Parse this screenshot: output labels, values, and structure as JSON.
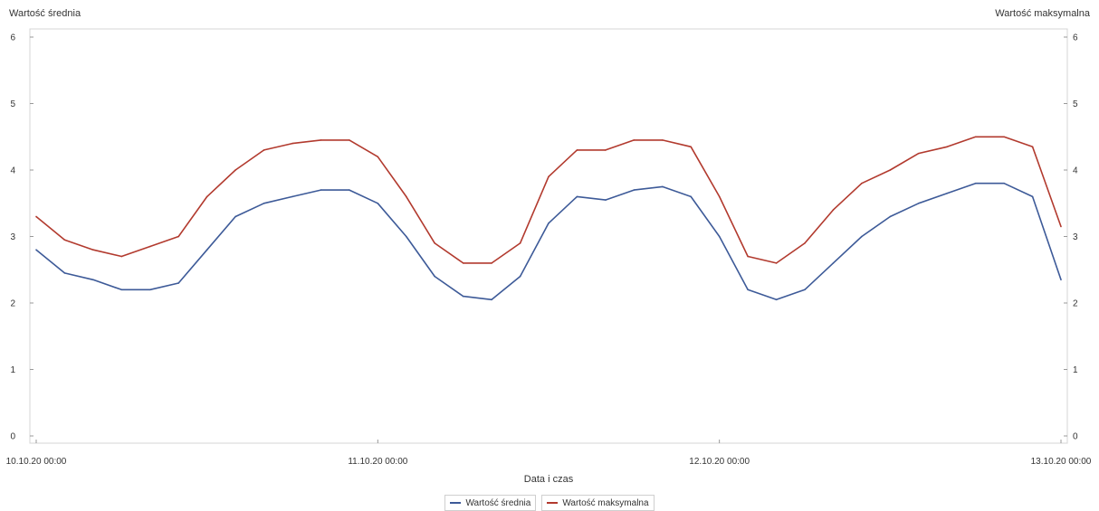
{
  "chart_data": {
    "type": "line",
    "title": "",
    "ylabel_left": "Wartość średnia",
    "ylabel_right": "Wartość maksymalna",
    "xlabel": "Data i czas",
    "ylim": [
      0,
      6
    ],
    "yticks": [
      "0",
      "1",
      "2",
      "3",
      "4",
      "5",
      "6"
    ],
    "xlim": [
      "10.10.20 00:00",
      "13.10.20 00:00"
    ],
    "xticks": [
      "10.10.20 00:00",
      "11.10.20 00:00",
      "12.10.20 00:00",
      "13.10.20 00:00"
    ],
    "legend_position": "bottom",
    "series": [
      {
        "name": "Wartość średnia",
        "color": "#3d5a98",
        "points": [
          [
            "10.10.20 00:00",
            2.8
          ],
          [
            "10.10.20 02:00",
            2.45
          ],
          [
            "10.10.20 04:00",
            2.35
          ],
          [
            "10.10.20 06:00",
            2.2
          ],
          [
            "10.10.20 08:00",
            2.2
          ],
          [
            "10.10.20 10:00",
            2.3
          ],
          [
            "10.10.20 12:00",
            2.8
          ],
          [
            "10.10.20 14:00",
            3.3
          ],
          [
            "10.10.20 16:00",
            3.5
          ],
          [
            "10.10.20 18:00",
            3.6
          ],
          [
            "10.10.20 20:00",
            3.7
          ],
          [
            "10.10.20 22:00",
            3.7
          ],
          [
            "11.10.20 00:00",
            3.5
          ],
          [
            "11.10.20 02:00",
            3.0
          ],
          [
            "11.10.20 04:00",
            2.4
          ],
          [
            "11.10.20 06:00",
            2.1
          ],
          [
            "11.10.20 08:00",
            2.05
          ],
          [
            "11.10.20 10:00",
            2.4
          ],
          [
            "11.10.20 12:00",
            3.2
          ],
          [
            "11.10.20 14:00",
            3.6
          ],
          [
            "11.10.20 16:00",
            3.55
          ],
          [
            "11.10.20 18:00",
            3.7
          ],
          [
            "11.10.20 20:00",
            3.75
          ],
          [
            "11.10.20 22:00",
            3.6
          ],
          [
            "12.10.20 00:00",
            3.0
          ],
          [
            "12.10.20 02:00",
            2.2
          ],
          [
            "12.10.20 04:00",
            2.05
          ],
          [
            "12.10.20 06:00",
            2.2
          ],
          [
            "12.10.20 08:00",
            2.6
          ],
          [
            "12.10.20 10:00",
            3.0
          ],
          [
            "12.10.20 12:00",
            3.3
          ],
          [
            "12.10.20 14:00",
            3.5
          ],
          [
            "12.10.20 16:00",
            3.65
          ],
          [
            "12.10.20 18:00",
            3.8
          ],
          [
            "12.10.20 20:00",
            3.8
          ],
          [
            "12.10.20 22:00",
            3.6
          ],
          [
            "13.10.20 00:00",
            2.35
          ]
        ]
      },
      {
        "name": "Wartość maksymalna",
        "color": "#b23a2e",
        "points": [
          [
            "10.10.20 00:00",
            3.3
          ],
          [
            "10.10.20 02:00",
            2.95
          ],
          [
            "10.10.20 04:00",
            2.8
          ],
          [
            "10.10.20 06:00",
            2.7
          ],
          [
            "10.10.20 08:00",
            2.85
          ],
          [
            "10.10.20 10:00",
            3.0
          ],
          [
            "10.10.20 12:00",
            3.6
          ],
          [
            "10.10.20 14:00",
            4.0
          ],
          [
            "10.10.20 16:00",
            4.3
          ],
          [
            "10.10.20 18:00",
            4.4
          ],
          [
            "10.10.20 20:00",
            4.45
          ],
          [
            "10.10.20 22:00",
            4.45
          ],
          [
            "11.10.20 00:00",
            4.2
          ],
          [
            "11.10.20 02:00",
            3.6
          ],
          [
            "11.10.20 04:00",
            2.9
          ],
          [
            "11.10.20 06:00",
            2.6
          ],
          [
            "11.10.20 08:00",
            2.6
          ],
          [
            "11.10.20 10:00",
            2.9
          ],
          [
            "11.10.20 12:00",
            3.9
          ],
          [
            "11.10.20 14:00",
            4.3
          ],
          [
            "11.10.20 16:00",
            4.3
          ],
          [
            "11.10.20 18:00",
            4.45
          ],
          [
            "11.10.20 20:00",
            4.45
          ],
          [
            "11.10.20 22:00",
            4.35
          ],
          [
            "12.10.20 00:00",
            3.6
          ],
          [
            "12.10.20 02:00",
            2.7
          ],
          [
            "12.10.20 04:00",
            2.6
          ],
          [
            "12.10.20 06:00",
            2.9
          ],
          [
            "12.10.20 08:00",
            3.4
          ],
          [
            "12.10.20 10:00",
            3.8
          ],
          [
            "12.10.20 12:00",
            4.0
          ],
          [
            "12.10.20 14:00",
            4.25
          ],
          [
            "12.10.20 16:00",
            4.35
          ],
          [
            "12.10.20 18:00",
            4.5
          ],
          [
            "12.10.20 20:00",
            4.5
          ],
          [
            "12.10.20 22:00",
            4.35
          ],
          [
            "13.10.20 00:00",
            3.15
          ]
        ]
      }
    ]
  }
}
